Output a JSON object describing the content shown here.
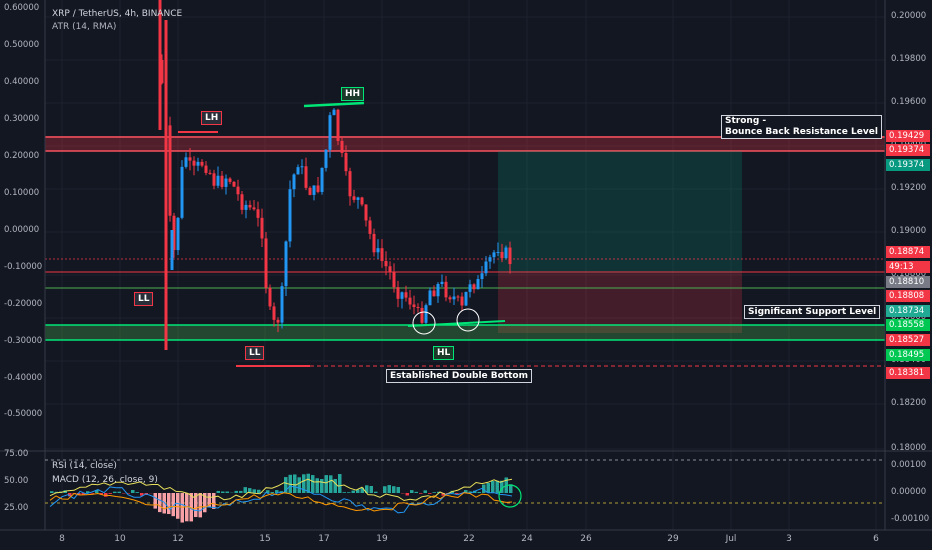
{
  "header": {
    "symbol_line": "XRP / TetherUS, 4h, BINANCE",
    "atr_label": "ATR (14, RMA)",
    "rsi_label": "RSI (14, close)",
    "macd_label": "MACD (12, 26, close, 9)"
  },
  "chart_data": [
    {
      "type": "candlestick",
      "title": "XRP / TetherUS, 4h, BINANCE",
      "x_ticks": [
        "8",
        "10",
        "12",
        "15",
        "17",
        "19",
        "22",
        "24",
        "26",
        "29",
        "Jul",
        "3",
        "6"
      ],
      "y_ticks_right": [
        "0.20000",
        "0.19800",
        "0.19600",
        "0.19400",
        "0.19200",
        "0.19000",
        "0.18800",
        "0.18600",
        "0.18400",
        "0.18200",
        "0.18000"
      ],
      "y_ticks_left": [
        "0.60000",
        "0.50000",
        "0.40000",
        "0.30000",
        "0.20000",
        "0.10000",
        "0.00000",
        "-0.10000",
        "-0.20000",
        "-0.30000",
        "-0.40000",
        "-0.50000"
      ],
      "ylim": [
        0.1796,
        0.2015
      ],
      "price_tags": [
        {
          "value": "0.19429",
          "color": "#f23645"
        },
        {
          "value": "0.19374",
          "color": "#f23645"
        },
        {
          "value": "0.19374",
          "color": "#089981"
        },
        {
          "value": "0.18874",
          "color": "#f23645"
        },
        {
          "value": "49:13",
          "color": "#f23645"
        },
        {
          "value": "0.18810",
          "color": "#787b86"
        },
        {
          "value": "0.18808",
          "color": "#f23645"
        },
        {
          "value": "0.18734",
          "color": "#22ab94"
        },
        {
          "value": "0.18558",
          "color": "#00c853"
        },
        {
          "value": "0.18527",
          "color": "#f23645"
        },
        {
          "value": "0.18495",
          "color": "#00c853"
        },
        {
          "value": "0.18381",
          "color": "#f23645"
        }
      ],
      "annotations": {
        "resistance_label": "Strong -\nBounce Back Resistance Level",
        "support_label": "Significant Support Level",
        "double_bottom_label": "Established Double Bottom",
        "lh": "LH",
        "hh": "HH",
        "ll_left": "LL",
        "ll_low": "LL",
        "hl": "HL"
      },
      "levels": {
        "resistance": 0.194,
        "resistance_upper": 0.19429,
        "support_upper": 0.18558,
        "support_lower": 0.18495,
        "ll_line": 0.18381,
        "mid_green": 0.1868,
        "current": 0.18874,
        "red_line": 0.188
      }
    },
    {
      "type": "line",
      "title": "RSI (14, close)",
      "y_ticks": [
        "75.00",
        "50.00",
        "25.00"
      ],
      "ylim": [
        18,
        78
      ]
    },
    {
      "type": "bar",
      "title": "MACD (12, 26, close, 9)",
      "y_ticks": [
        "0.00100",
        "0.00000",
        "-0.00100"
      ]
    }
  ]
}
